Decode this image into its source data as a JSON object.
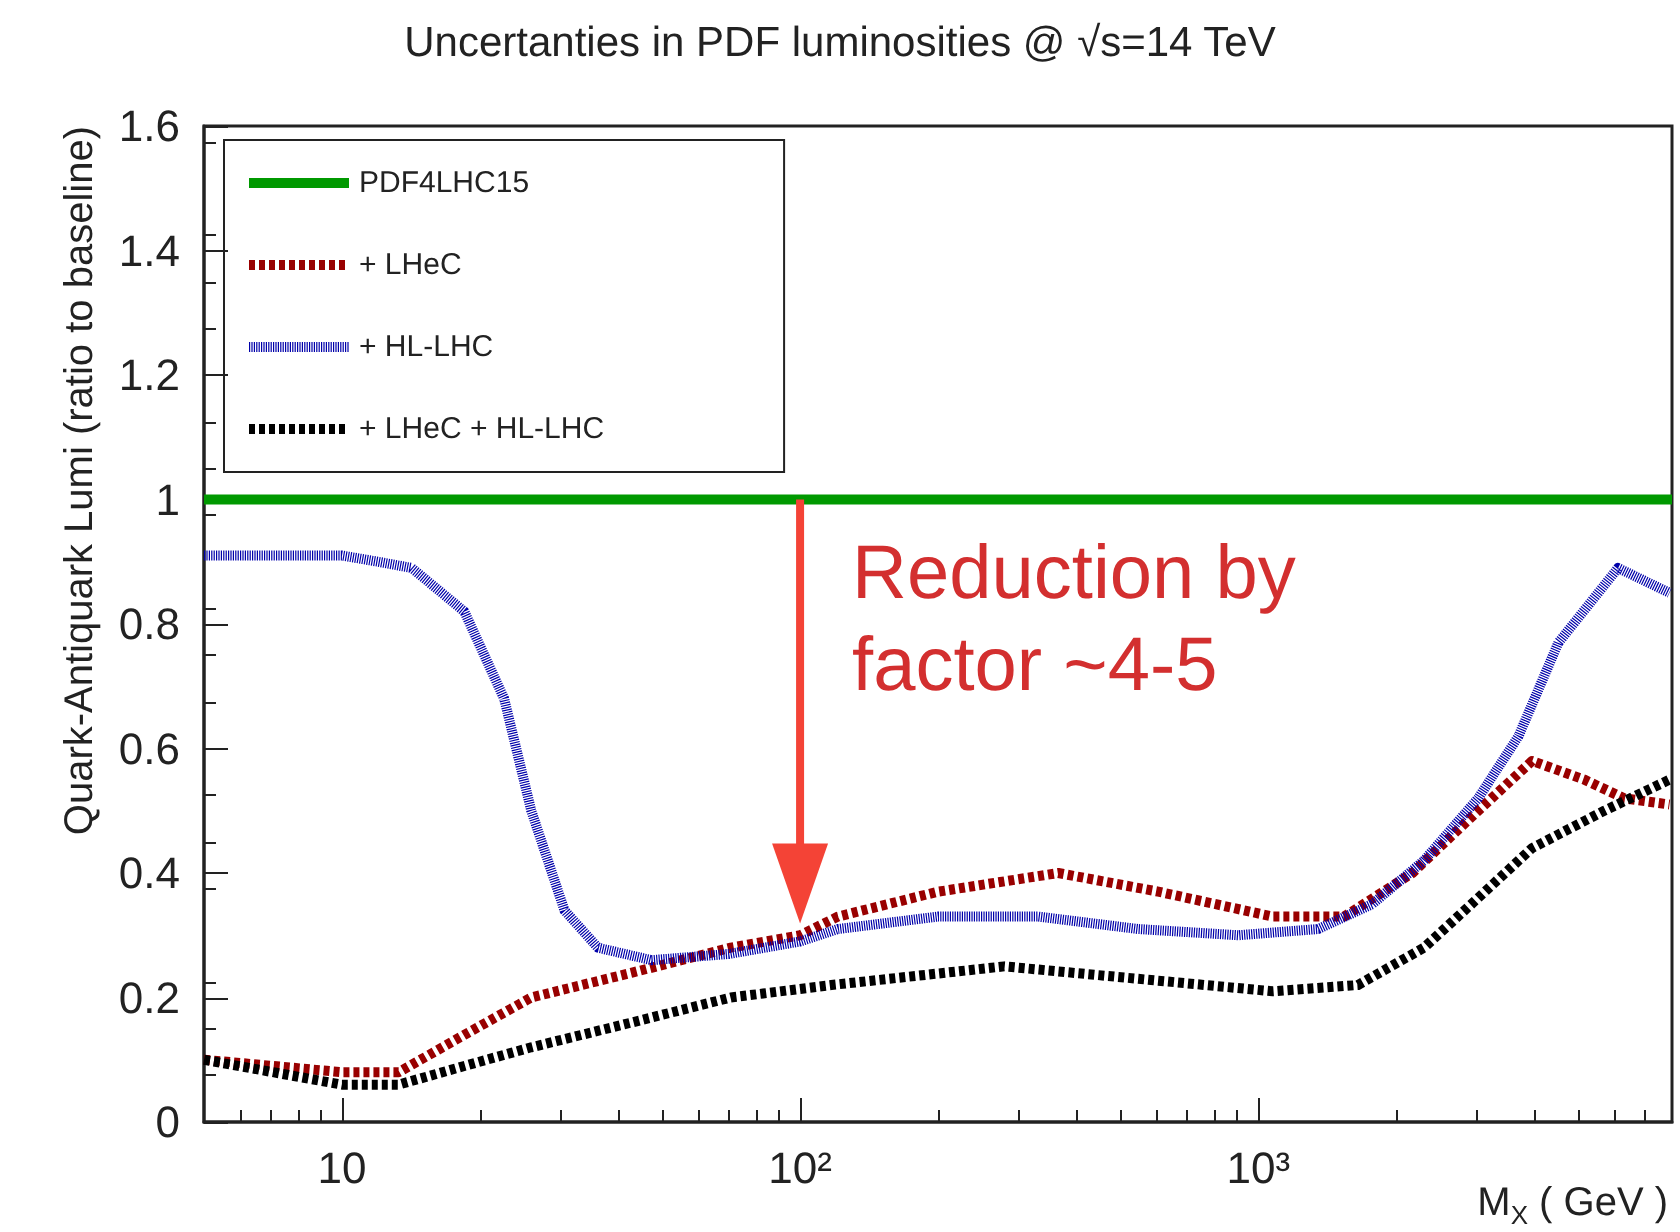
{
  "chart_data": {
    "type": "line",
    "title": "Uncertanties in PDF luminosities @ √s=14 TeV",
    "xlabel": "M$_{X}$ ( GeV )",
    "ylabel": "Quark-Antiquark Lumi (ratio to baseline)",
    "log": "x",
    "xlim": [
      5,
      8000
    ],
    "xticks": [
      10,
      {
        "value": 100,
        "label": "10²"
      },
      {
        "value": 1000,
        "label": "10³"
      }
    ],
    "ylim": [
      0,
      1.6
    ],
    "yticks": [
      0,
      0.2,
      0.4,
      0.6,
      0.8,
      1,
      1.2,
      1.4,
      1.6
    ],
    "grid": false,
    "legend": "top left",
    "marker": "none",
    "annotations": [
      {
        "text": "Reduction by\nfactor ~4-5",
        "x": 100,
        "y": 1
      }
    ],
    "series": [
      {
        "name": "PDF4LHC15",
        "color": "#009900",
        "line_style": "solid",
        "x": [
          5,
          8000
        ],
        "values": [
          1,
          1
        ]
      },
      {
        "name": "+ LHeC",
        "color": "#990000",
        "line_style": "dashed",
        "x": [
          5,
          10,
          13.3,
          18.5,
          25.9,
          43,
          70.6,
          100,
          121,
          200,
          366,
          605,
          1075,
          1540,
          2170,
          3020,
          3960,
          5150,
          6290,
          7900
        ],
        "values": [
          0.1,
          0.08,
          0.08,
          0.14,
          0.2,
          0.24,
          0.28,
          0.3,
          0.33,
          0.37,
          0.4,
          0.37,
          0.33,
          0.33,
          0.4,
          0.5,
          0.58,
          0.55,
          0.52,
          0.51
        ]
      },
      {
        "name": "+ HL-LHC",
        "color": "#0000aa",
        "line_style": "dotted",
        "x": [
          5,
          8,
          10,
          12,
          14.2,
          18.5,
          22.6,
          25.9,
          30.6,
          36.2,
          47.4,
          70,
          100,
          121,
          200,
          331,
          547,
          904,
          1352,
          1773,
          2300,
          3020,
          3700,
          4520,
          6100,
          7900
        ],
        "values": [
          0.91,
          0.91,
          0.91,
          0.9,
          0.89,
          0.82,
          0.68,
          0.5,
          0.34,
          0.28,
          0.26,
          0.27,
          0.29,
          0.31,
          0.33,
          0.33,
          0.31,
          0.3,
          0.31,
          0.35,
          0.42,
          0.52,
          0.62,
          0.77,
          0.89,
          0.85
        ]
      },
      {
        "name": "+ LHeC + HL-LHC",
        "color": "#000000",
        "line_style": "dashed",
        "x": [
          5,
          10,
          13.3,
          18.5,
          25.9,
          43,
          70.6,
          117,
          279,
          547,
          1075,
          1650,
          2300,
          3020,
          3960,
          5690,
          7900
        ],
        "values": [
          0.1,
          0.06,
          0.06,
          0.09,
          0.12,
          0.16,
          0.2,
          0.22,
          0.25,
          0.23,
          0.21,
          0.22,
          0.28,
          0.36,
          0.44,
          0.5,
          0.55
        ]
      }
    ]
  }
}
